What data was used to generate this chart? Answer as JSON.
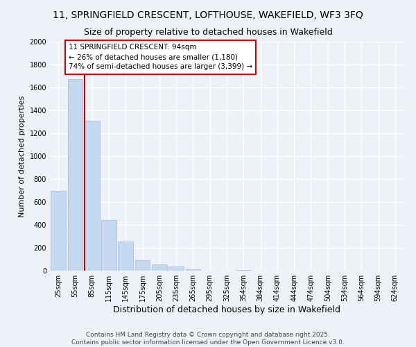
{
  "title_line1": "11, SPRINGFIELD CRESCENT, LOFTHOUSE, WAKEFIELD, WF3 3FQ",
  "title_line2": "Size of property relative to detached houses in Wakefield",
  "xlabel": "Distribution of detached houses by size in Wakefield",
  "ylabel": "Number of detached properties",
  "bar_labels": [
    "25sqm",
    "55sqm",
    "85sqm",
    "115sqm",
    "145sqm",
    "175sqm",
    "205sqm",
    "235sqm",
    "265sqm",
    "295sqm",
    "325sqm",
    "354sqm",
    "384sqm",
    "414sqm",
    "444sqm",
    "474sqm",
    "504sqm",
    "534sqm",
    "564sqm",
    "594sqm",
    "624sqm"
  ],
  "bar_values": [
    700,
    1670,
    1310,
    440,
    255,
    90,
    55,
    35,
    10,
    0,
    0,
    5,
    0,
    0,
    0,
    0,
    0,
    0,
    0,
    0,
    0
  ],
  "bar_color": "#c5d9f0",
  "bar_edge_color": "#a0b8d8",
  "vline_color": "#cc0000",
  "annotation_text": "11 SPRINGFIELD CRESCENT: 94sqm\n← 26% of detached houses are smaller (1,180)\n74% of semi-detached houses are larger (3,399) →",
  "annotation_box_color": "#ffffff",
  "annotation_box_edge": "#cc0000",
  "ylim": [
    0,
    2000
  ],
  "yticks": [
    0,
    200,
    400,
    600,
    800,
    1000,
    1200,
    1400,
    1600,
    1800,
    2000
  ],
  "bg_color": "#eef2f8",
  "grid_color": "#ffffff",
  "footer_line1": "Contains HM Land Registry data © Crown copyright and database right 2025.",
  "footer_line2": "Contains public sector information licensed under the Open Government Licence v3.0."
}
